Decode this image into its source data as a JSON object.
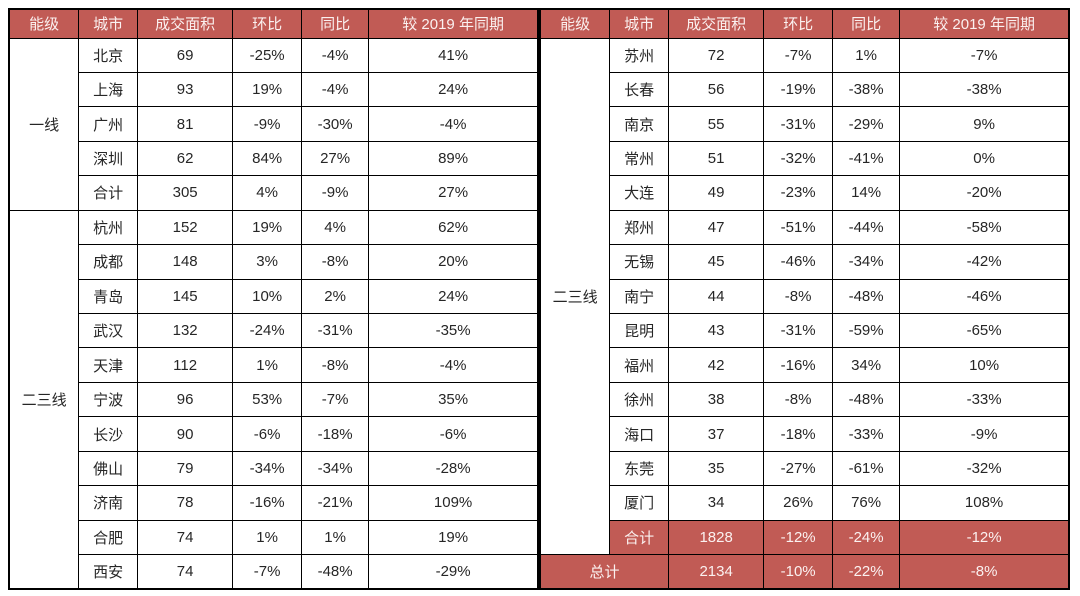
{
  "colors": {
    "header_bg": "#C15B55",
    "header_text": "#FBF1F0",
    "summary_bg": "#C15B55",
    "summary_text": "#FBF1F0",
    "body_text": "#262626",
    "border": "#000000",
    "page_bg": "#FFFFFF"
  },
  "columns": [
    "能级",
    "城市",
    "成交面积",
    "环比",
    "同比",
    "较 2019 年同期"
  ],
  "tables": [
    {
      "name": "left-panel",
      "groups": [
        {
          "tier": "一线",
          "rows": [
            {
              "city": "北京",
              "values": [
                "69",
                "-25%",
                "-4%",
                "41%"
              ],
              "highlight": false
            },
            {
              "city": "上海",
              "values": [
                "93",
                "19%",
                "-4%",
                "24%"
              ],
              "highlight": false
            },
            {
              "city": "广州",
              "values": [
                "81",
                "-9%",
                "-30%",
                "-4%"
              ],
              "highlight": false
            },
            {
              "city": "深圳",
              "values": [
                "62",
                "84%",
                "27%",
                "89%"
              ],
              "highlight": false
            },
            {
              "city": "合计",
              "values": [
                "305",
                "4%",
                "-9%",
                "27%"
              ],
              "highlight": false
            }
          ]
        },
        {
          "tier": "二三线",
          "rows": [
            {
              "city": "杭州",
              "values": [
                "152",
                "19%",
                "4%",
                "62%"
              ],
              "highlight": false
            },
            {
              "city": "成都",
              "values": [
                "148",
                "3%",
                "-8%",
                "20%"
              ],
              "highlight": false
            },
            {
              "city": "青岛",
              "values": [
                "145",
                "10%",
                "2%",
                "24%"
              ],
              "highlight": false
            },
            {
              "city": "武汉",
              "values": [
                "132",
                "-24%",
                "-31%",
                "-35%"
              ],
              "highlight": false
            },
            {
              "city": "天津",
              "values": [
                "112",
                "1%",
                "-8%",
                "-4%"
              ],
              "highlight": false
            },
            {
              "city": "宁波",
              "values": [
                "96",
                "53%",
                "-7%",
                "35%"
              ],
              "highlight": false
            },
            {
              "city": "长沙",
              "values": [
                "90",
                "-6%",
                "-18%",
                "-6%"
              ],
              "highlight": false
            },
            {
              "city": "佛山",
              "values": [
                "79",
                "-34%",
                "-34%",
                "-28%"
              ],
              "highlight": false
            },
            {
              "city": "济南",
              "values": [
                "78",
                "-16%",
                "-21%",
                "109%"
              ],
              "highlight": false
            },
            {
              "city": "合肥",
              "values": [
                "74",
                "1%",
                "1%",
                "19%"
              ],
              "highlight": false
            },
            {
              "city": "西安",
              "values": [
                "74",
                "-7%",
                "-48%",
                "-29%"
              ],
              "highlight": false
            }
          ]
        }
      ],
      "total_row": null
    },
    {
      "name": "right-panel",
      "groups": [
        {
          "tier": "二三线",
          "rows": [
            {
              "city": "苏州",
              "values": [
                "72",
                "-7%",
                "1%",
                "-7%"
              ],
              "highlight": false
            },
            {
              "city": "长春",
              "values": [
                "56",
                "-19%",
                "-38%",
                "-38%"
              ],
              "highlight": false
            },
            {
              "city": "南京",
              "values": [
                "55",
                "-31%",
                "-29%",
                "9%"
              ],
              "highlight": false
            },
            {
              "city": "常州",
              "values": [
                "51",
                "-32%",
                "-41%",
                "0%"
              ],
              "highlight": false
            },
            {
              "city": "大连",
              "values": [
                "49",
                "-23%",
                "14%",
                "-20%"
              ],
              "highlight": false
            },
            {
              "city": "郑州",
              "values": [
                "47",
                "-51%",
                "-44%",
                "-58%"
              ],
              "highlight": false
            },
            {
              "city": "无锡",
              "values": [
                "45",
                "-46%",
                "-34%",
                "-42%"
              ],
              "highlight": false
            },
            {
              "city": "南宁",
              "values": [
                "44",
                "-8%",
                "-48%",
                "-46%"
              ],
              "highlight": false
            },
            {
              "city": "昆明",
              "values": [
                "43",
                "-31%",
                "-59%",
                "-65%"
              ],
              "highlight": false
            },
            {
              "city": "福州",
              "values": [
                "42",
                "-16%",
                "34%",
                "10%"
              ],
              "highlight": false
            },
            {
              "city": "徐州",
              "values": [
                "38",
                "-8%",
                "-48%",
                "-33%"
              ],
              "highlight": false
            },
            {
              "city": "海口",
              "values": [
                "37",
                "-18%",
                "-33%",
                "-9%"
              ],
              "highlight": false
            },
            {
              "city": "东莞",
              "values": [
                "35",
                "-27%",
                "-61%",
                "-32%"
              ],
              "highlight": false
            },
            {
              "city": "厦门",
              "values": [
                "34",
                "26%",
                "76%",
                "108%"
              ],
              "highlight": false
            },
            {
              "city": "合计",
              "values": [
                "1828",
                "-12%",
                "-24%",
                "-12%"
              ],
              "highlight": true
            }
          ]
        }
      ],
      "total_row": {
        "label": "总计",
        "values": [
          "2134",
          "-10%",
          "-22%",
          "-8%"
        ]
      }
    }
  ]
}
